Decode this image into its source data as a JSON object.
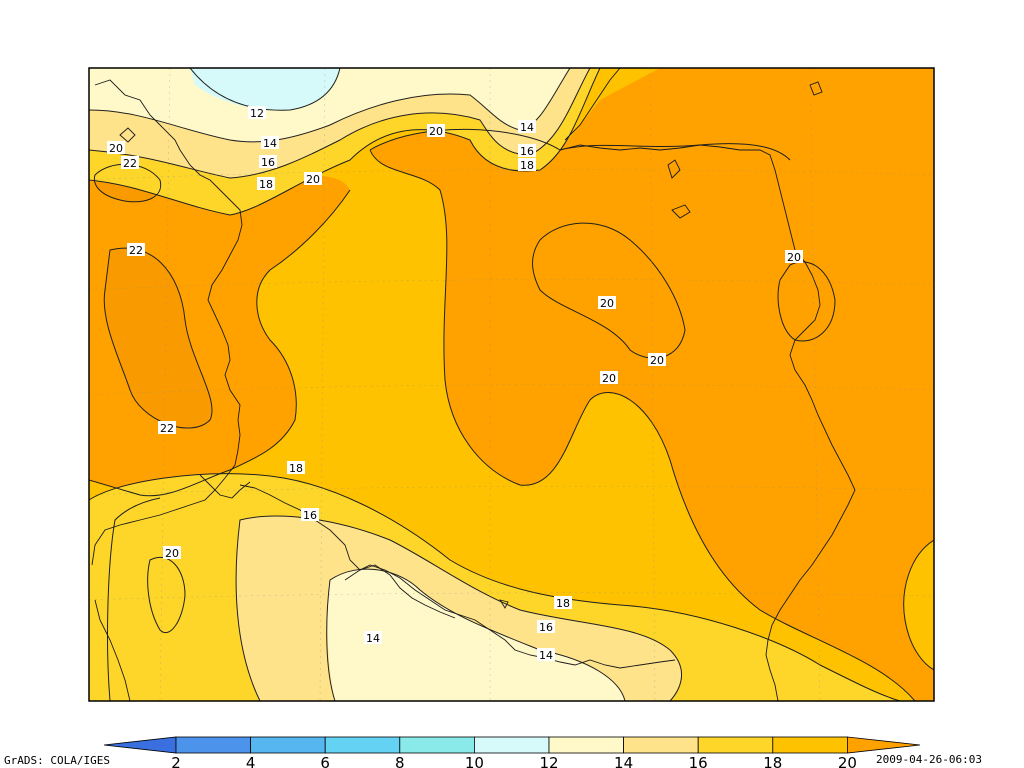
{
  "software_credit": "GrADS: COLA/IGES",
  "timestamp": "2009-04-26-06:03",
  "colorbar": {
    "ticks": [
      "2",
      "4",
      "6",
      "8",
      "10",
      "12",
      "14",
      "16",
      "18",
      "20"
    ],
    "colors": [
      "#3a6fe0",
      "#4c93ec",
      "#55b6f0",
      "#64d2f2",
      "#8aeaea",
      "#d6fafa",
      "#fff8c8",
      "#fee38a",
      "#fed62a",
      "#ffc200",
      "#ffa200",
      "#f99b00"
    ]
  },
  "contour_labels": [
    {
      "text": "12"
    },
    {
      "text": "14"
    },
    {
      "text": "16"
    },
    {
      "text": "18"
    },
    {
      "text": "20"
    },
    {
      "text": "22"
    },
    {
      "text": "22"
    },
    {
      "text": "22"
    },
    {
      "text": "14"
    },
    {
      "text": "16"
    },
    {
      "text": "18"
    },
    {
      "text": "20"
    },
    {
      "text": "20"
    },
    {
      "text": "20"
    },
    {
      "text": "20"
    },
    {
      "text": "20"
    },
    {
      "text": "20"
    },
    {
      "text": "18"
    },
    {
      "text": "16"
    },
    {
      "text": "20"
    },
    {
      "text": "14"
    },
    {
      "text": "18"
    },
    {
      "text": "16"
    },
    {
      "text": "14"
    }
  ]
}
